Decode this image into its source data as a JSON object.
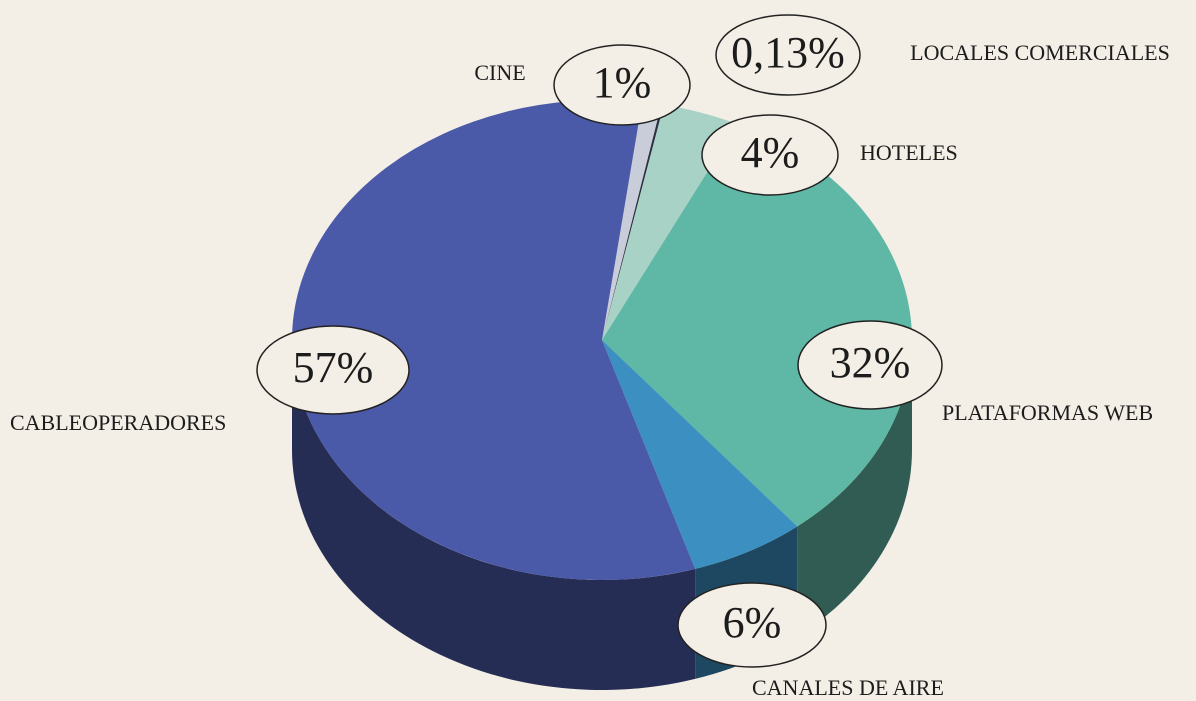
{
  "chart_data": {
    "type": "pie",
    "categories": [
      "CINE",
      "LOCALES COMERCIALES",
      "HOTELES",
      "PLATAFORMAS WEB",
      "CANALES DE AIRE",
      "CABLEOPERADORES"
    ],
    "values": [
      1,
      0.13,
      4,
      32,
      6,
      57
    ],
    "value_labels": [
      "1%",
      "0,13%",
      "4%",
      "32%",
      "6%",
      "57%"
    ],
    "colors": [
      "#c9cdd9",
      "#2b3140",
      "#a9d2c6",
      "#5fb8a5",
      "#3b90c1",
      "#4a5aa9"
    ]
  }
}
